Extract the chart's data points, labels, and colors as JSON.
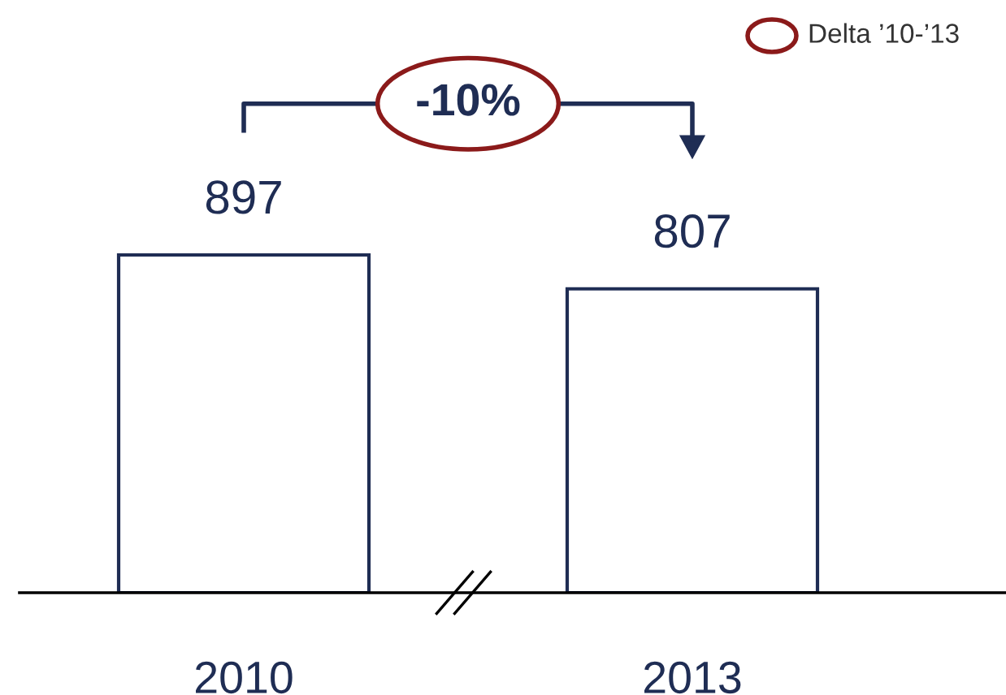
{
  "chart_data": {
    "type": "bar",
    "categories": [
      "2010",
      "2013"
    ],
    "values": [
      897,
      807
    ],
    "color": "#ffffff",
    "data_labels": true,
    "annotations": [
      "-10%",
      "Delta ’10-’13"
    ]
  }
}
